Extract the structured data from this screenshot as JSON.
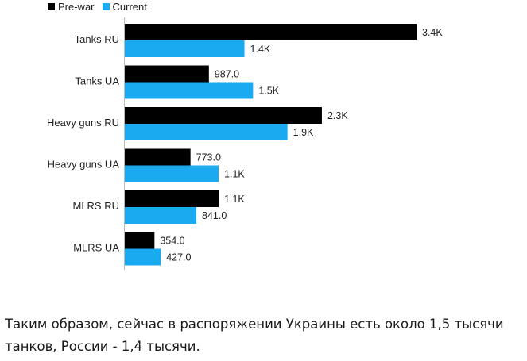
{
  "chart_data": {
    "type": "bar",
    "orientation": "horizontal",
    "categories": [
      "Tanks RU",
      "Tanks UA",
      "Heavy guns RU",
      "Heavy guns UA",
      "MLRS RU",
      "MLRS UA"
    ],
    "series": [
      {
        "name": "Pre-war",
        "color": "#000000",
        "values": [
          3400,
          987,
          2300,
          773,
          1100,
          354
        ],
        "labels": [
          "3.4K",
          "987.0",
          "2.3K",
          "773.0",
          "1.1K",
          "354.0"
        ]
      },
      {
        "name": "Current",
        "color": "#1aaaf0",
        "values": [
          1400,
          1500,
          1900,
          1100,
          841,
          427
        ],
        "labels": [
          "1.4K",
          "1.5K",
          "1.9K",
          "1.1K",
          "841.0",
          "427.0"
        ]
      }
    ],
    "xlim": [
      0,
      3400
    ],
    "grid": false,
    "legend_position": "top-left"
  },
  "caption": "Таким образом, сейчас в распоряжении Украины есть около 1,5 тысячи танков, России - 1,4 тысячи."
}
